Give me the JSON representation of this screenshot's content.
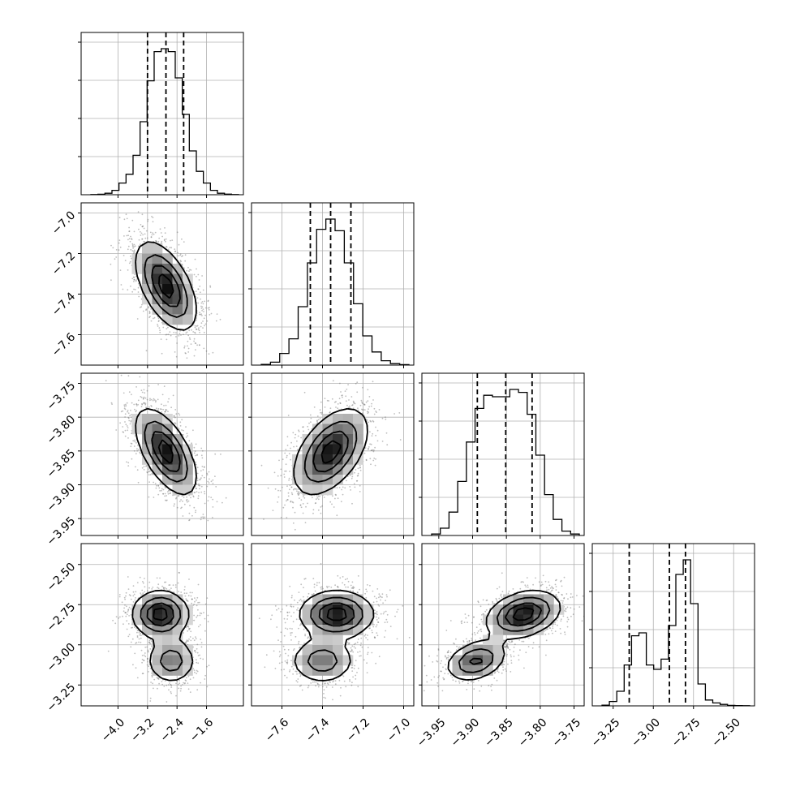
{
  "chart_data": {
    "type": "corner",
    "grid": true,
    "parameters": [
      {
        "range": [
          -5.0,
          -0.6
        ],
        "ticks": [
          -4.0,
          -3.2,
          -2.4,
          -1.6
        ],
        "tick_labels": [
          "−4.0",
          "−3.2",
          "−2.4",
          "−1.6"
        ],
        "quantiles": [
          -3.2,
          -2.7,
          -2.22
        ],
        "histogram": [
          0.1,
          0.3,
          1.0,
          3.0,
          8.0,
          14.0,
          27.0,
          50.0,
          78.0,
          98.0,
          100.0,
          98.0,
          80.0,
          55.0,
          30.0,
          16.0,
          8.0,
          3.0,
          1.0,
          0.4,
          0.1
        ]
      },
      {
        "range": [
          -7.75,
          -6.95
        ],
        "ticks": [
          -7.6,
          -7.4,
          -7.2,
          -7.0
        ],
        "tick_labels": [
          "−7.6",
          "−7.4",
          "−7.2",
          "−7.0"
        ],
        "quantiles": [
          -7.46,
          -7.36,
          -7.26
        ],
        "histogram": [
          0.5,
          2.0,
          8.0,
          18.0,
          40.0,
          70.0,
          93.0,
          100.0,
          92.0,
          70.0,
          42.0,
          20.0,
          9.0,
          3.0,
          1.0,
          0.3
        ]
      },
      {
        "range": [
          -3.975,
          -3.735
        ],
        "ticks": [
          -3.95,
          -3.9,
          -3.85,
          -3.8,
          -3.75
        ],
        "tick_labels": [
          "−3.95",
          "−3.90",
          "−3.85",
          "−3.80",
          "−3.75"
        ],
        "quantiles": [
          -3.893,
          -3.851,
          -3.812
        ],
        "histogram": [
          1.0,
          5.0,
          16.0,
          37.0,
          64.0,
          87.0,
          96.0,
          95.0,
          95.0,
          100.0,
          98.0,
          83.0,
          55.0,
          28.0,
          11.0,
          3.0,
          1.0
        ]
      },
      {
        "range": [
          -3.38,
          -2.37
        ],
        "ticks": [
          -3.25,
          -3.0,
          -2.75,
          -2.5
        ],
        "tick_labels": [
          "−3.25",
          "−3.00",
          "−2.75",
          "−2.50"
        ],
        "quantiles": [
          -3.15,
          -2.9,
          -2.8
        ],
        "histogram": [
          0.5,
          3.0,
          10.0,
          28.0,
          48.0,
          50.0,
          28.0,
          25.0,
          32.0,
          55.0,
          90.0,
          100.0,
          70.0,
          15.0,
          4.0,
          2.0,
          1.0,
          0.3,
          0.2,
          0.1
        ]
      }
    ],
    "gaussians": {
      "1,0": [
        {
          "w": 1.0,
          "mx": -2.7,
          "my": -7.36,
          "sx": 0.45,
          "sy": 0.12,
          "rho": -0.55
        }
      ],
      "2,0": [
        {
          "w": 1.0,
          "mx": -2.7,
          "my": -3.851,
          "sx": 0.45,
          "sy": 0.035,
          "rho": -0.6
        }
      ],
      "2,1": [
        {
          "w": 1.0,
          "mx": -7.36,
          "my": -3.851,
          "sx": 0.1,
          "sy": 0.035,
          "rho": 0.5
        }
      ],
      "3,0": [
        {
          "w": 0.65,
          "mx": -2.85,
          "my": -2.81,
          "sx": 0.42,
          "sy": 0.08,
          "rho": 0.0
        },
        {
          "w": 0.35,
          "mx": -2.55,
          "my": -3.1,
          "sx": 0.38,
          "sy": 0.08,
          "rho": 0.0
        }
      ],
      "3,1": [
        {
          "w": 0.65,
          "mx": -7.33,
          "my": -2.81,
          "sx": 0.1,
          "sy": 0.08,
          "rho": 0.0
        },
        {
          "w": 0.35,
          "mx": -7.4,
          "my": -3.1,
          "sx": 0.09,
          "sy": 0.08,
          "rho": 0.0
        }
      ],
      "3,2": [
        {
          "w": 0.65,
          "mx": -3.825,
          "my": -2.81,
          "sx": 0.03,
          "sy": 0.08,
          "rho": 0.3
        },
        {
          "w": 0.35,
          "mx": -3.895,
          "my": -3.1,
          "sx": 0.025,
          "sy": 0.07,
          "rho": 0.3
        }
      ]
    },
    "pair_density_peaks": {
      "1,0": [
        [
          -2.7,
          -7.38
        ]
      ],
      "2,0": [
        [
          -2.85,
          -3.82
        ],
        [
          -2.5,
          -3.87
        ]
      ],
      "2,1": [
        [
          -7.33,
          -3.83
        ],
        [
          -7.36,
          -3.87
        ]
      ],
      "3,0": [
        [
          -2.85,
          -2.82
        ],
        [
          -2.55,
          -3.1
        ]
      ],
      "3,1": [
        [
          -7.33,
          -2.82
        ],
        [
          -7.4,
          -3.1
        ]
      ],
      "3,2": [
        [
          -3.825,
          -2.82
        ],
        [
          -3.895,
          -3.1
        ]
      ]
    }
  }
}
